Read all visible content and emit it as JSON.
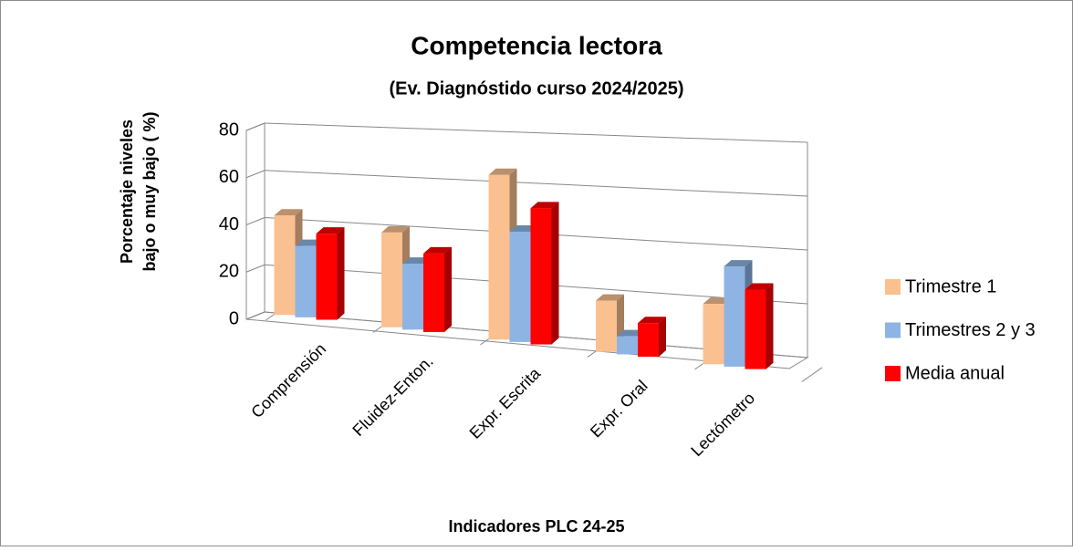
{
  "chart_data": {
    "type": "bar3d",
    "title": "Competencia lectora",
    "subtitle": "(Ev. Diagnóstido curso 2024/2025)",
    "ylabel": [
      "Porcentaje niveles",
      "bajo o muy bajo ( %)"
    ],
    "xlabel": "Indicadores PLC 24-25",
    "categories": [
      "Comprensión",
      "Fluidez-Enton.",
      "Expr. Escrita",
      "Expr. Oral",
      "Lectómetro"
    ],
    "series": [
      {
        "name": "Trimestre 1",
        "color": "#FAC090",
        "values": [
          42,
          39,
          66,
          20,
          23
        ]
      },
      {
        "name": "Trimestres 2 y 3",
        "color": "#8EB4E3",
        "values": [
          30,
          27,
          44,
          7,
          38
        ]
      },
      {
        "name": "Media anual",
        "color": "#FF0000",
        "values": [
          36,
          32,
          54,
          13,
          30
        ]
      }
    ],
    "ylim": [
      0,
      80
    ],
    "yticks": [
      0,
      20,
      40,
      60,
      80
    ],
    "grid": true,
    "legend": "right"
  }
}
